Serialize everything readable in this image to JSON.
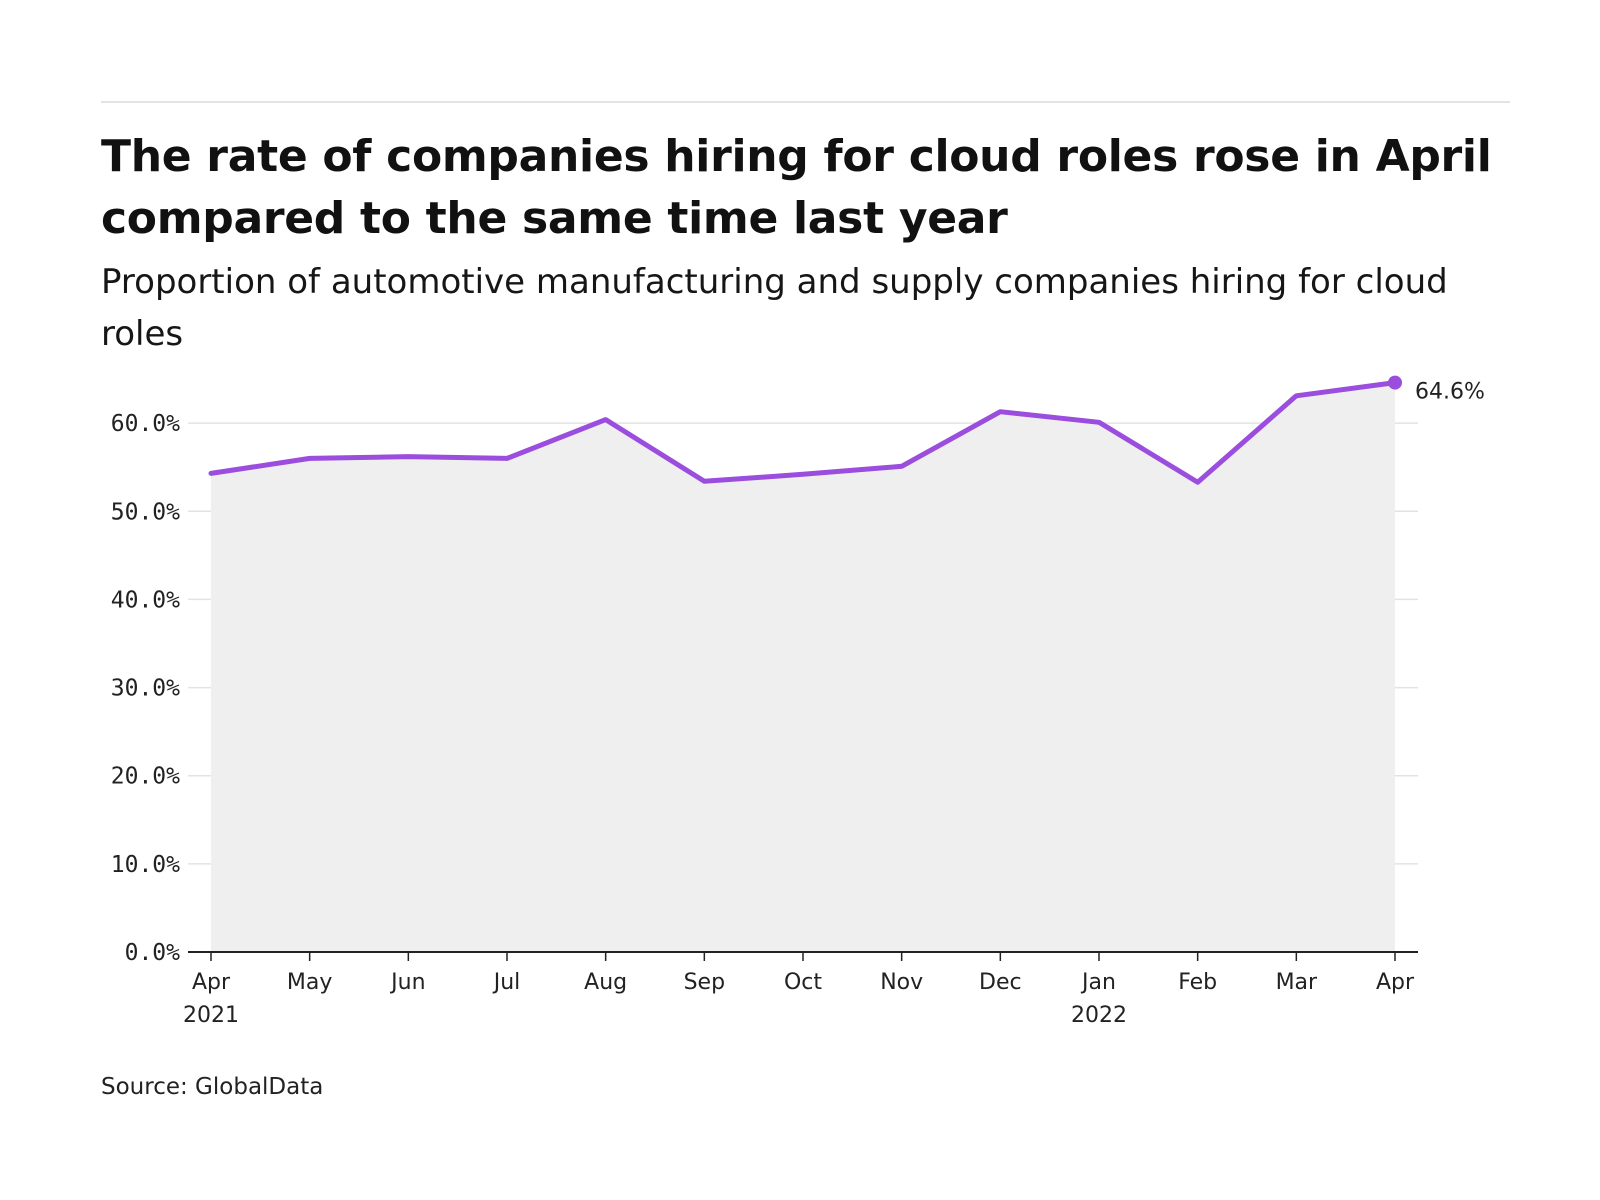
{
  "title": "The rate of companies hiring for cloud roles rose in April compared to the same time last year",
  "subtitle": "Proportion of automotive manufacturing and supply companies hiring for cloud roles",
  "source": "Source: GlobalData",
  "colors": {
    "line": "#9b4dde",
    "area": "#efefef",
    "grid": "#e3e3e3",
    "axis": "#222222"
  },
  "chart_data": {
    "type": "area",
    "x": [
      "Apr 2021",
      "May 2021",
      "Jun 2021",
      "Jul 2021",
      "Aug 2021",
      "Sep 2021",
      "Oct 2021",
      "Nov 2021",
      "Dec 2021",
      "Jan 2022",
      "Feb 2022",
      "Mar 2022",
      "Apr 2022"
    ],
    "categories": [
      {
        "label": "Apr",
        "year": "2021"
      },
      {
        "label": "May",
        "year": ""
      },
      {
        "label": "Jun",
        "year": ""
      },
      {
        "label": "Jul",
        "year": ""
      },
      {
        "label": "Aug",
        "year": ""
      },
      {
        "label": "Sep",
        "year": ""
      },
      {
        "label": "Oct",
        "year": ""
      },
      {
        "label": "Nov",
        "year": ""
      },
      {
        "label": "Dec",
        "year": ""
      },
      {
        "label": "Jan",
        "year": "2022"
      },
      {
        "label": "Feb",
        "year": ""
      },
      {
        "label": "Mar",
        "year": ""
      },
      {
        "label": "Apr",
        "year": ""
      }
    ],
    "series": [
      {
        "values": [
          54.3,
          56.0,
          56.2,
          56.0,
          60.4,
          53.4,
          54.2,
          55.1,
          61.3,
          60.1,
          53.3,
          63.1,
          64.6
        ]
      }
    ],
    "end_label": "64.6%",
    "ylim": [
      0,
      70
    ],
    "yticks": [
      0,
      10,
      20,
      30,
      40,
      50,
      60
    ],
    "ytick_labels": [
      "0.0%",
      "10.0%",
      "20.0%",
      "30.0%",
      "40.0%",
      "50.0%",
      "60.0%"
    ],
    "grid": true,
    "xlabel": "",
    "ylabel": ""
  }
}
